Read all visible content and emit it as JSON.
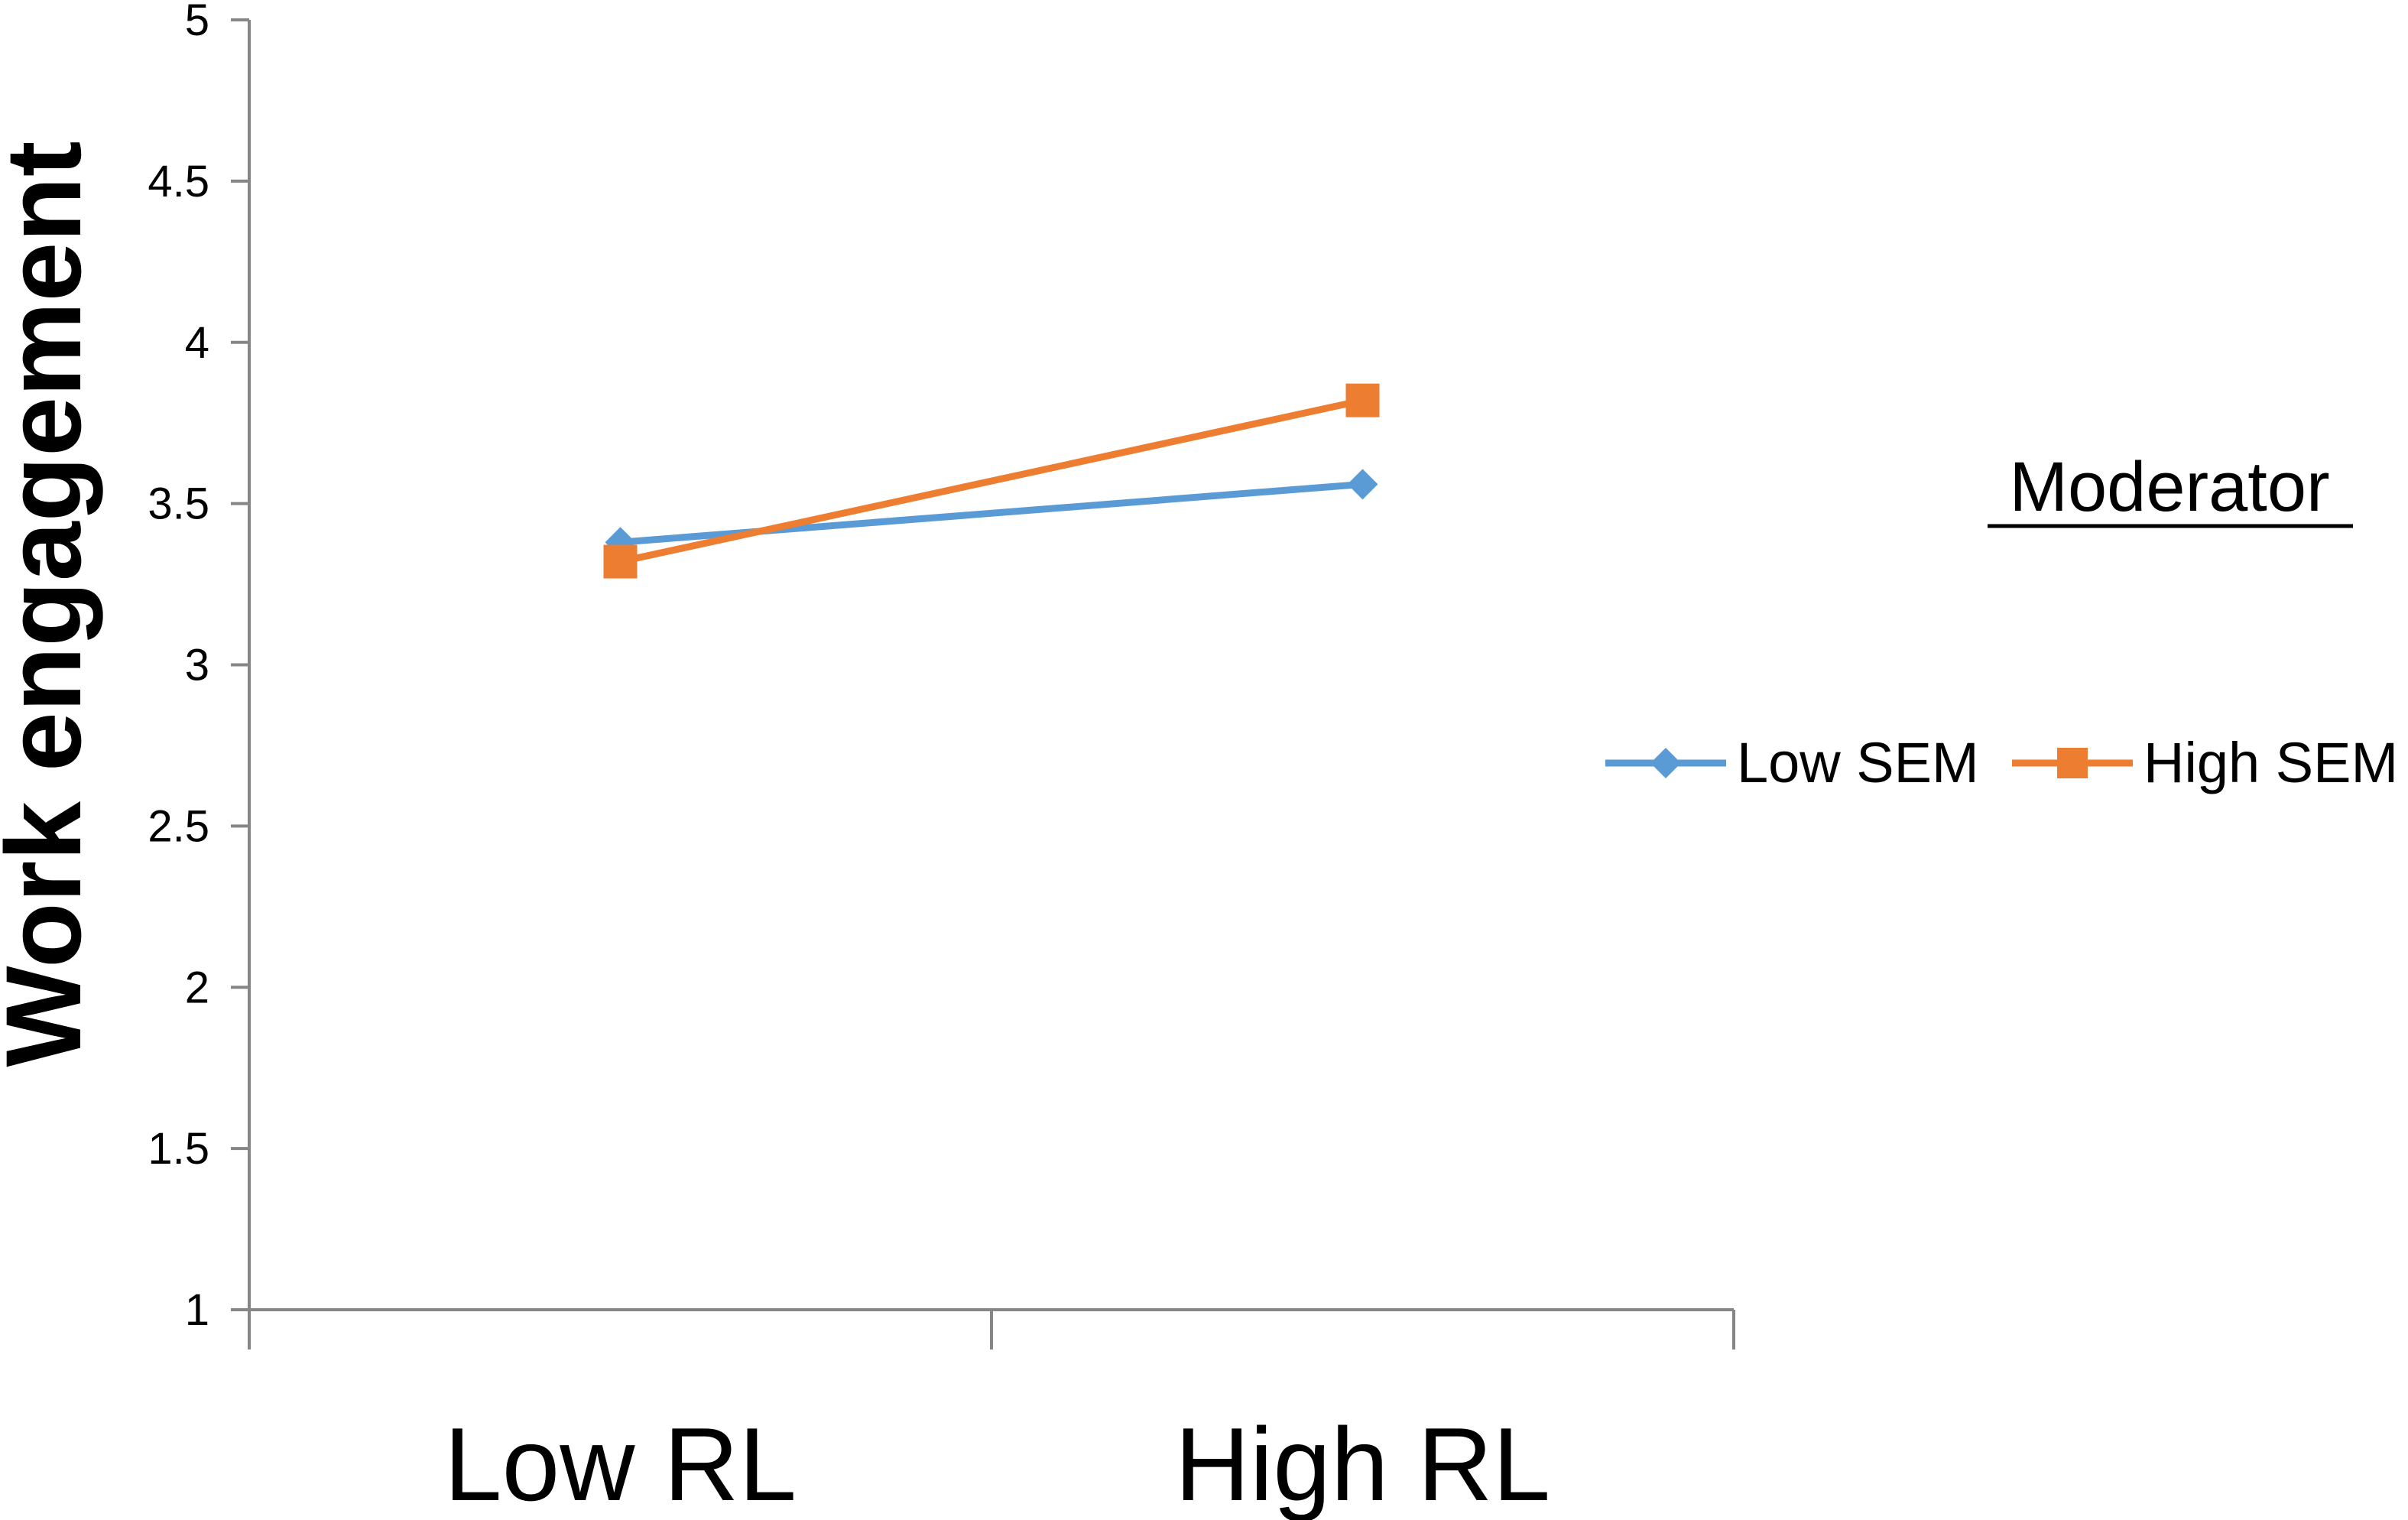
{
  "chart_data": {
    "type": "line",
    "title": "",
    "xlabel": "",
    "ylabel": "Work engagement",
    "categories": [
      "Low RL",
      "High RL"
    ],
    "ylim": [
      1,
      5
    ],
    "yticks": [
      "1",
      "1.5",
      "2",
      "2.5",
      "3",
      "3.5",
      "4",
      "4.5",
      "5"
    ],
    "grid": false,
    "legend": {
      "title": "Moderator",
      "placement": "right"
    },
    "series": [
      {
        "name": "Low SEM",
        "values": [
          3.38,
          3.56
        ],
        "color": "#5B9BD5",
        "marker": "diamond"
      },
      {
        "name": "High SEM",
        "values": [
          3.32,
          3.82
        ],
        "color": "#ED7D31",
        "marker": "square"
      }
    ]
  },
  "colors": {
    "axis": "#868686",
    "text": "#000000",
    "background": "#ffffff"
  }
}
